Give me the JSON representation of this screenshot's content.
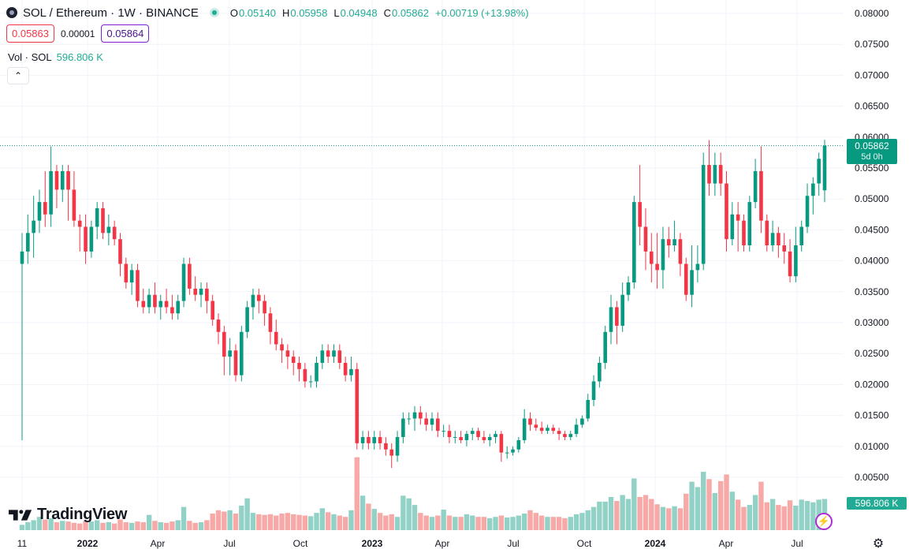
{
  "header": {
    "symbol_title": "SOL / Ethereum · 1W · BINANCE",
    "ohlc": {
      "o_label": "O",
      "o": "0.05140",
      "h_label": "H",
      "h": "0.05958",
      "l_label": "L",
      "l": "0.04948",
      "c_label": "C",
      "c": "0.05862",
      "change": "+0.00719 (+13.98%)"
    },
    "sell_price": "0.05863",
    "spread": "0.00001",
    "buy_price": "0.05864",
    "volume_label": "Vol · SOL",
    "volume_value": "596.806 K"
  },
  "price_tag": {
    "price": "0.05862",
    "countdown": "5d 0h"
  },
  "volume_tag": "596.806 K",
  "logo": {
    "text": "TradingView"
  },
  "icons": {
    "symbol": "solana-logo-icon",
    "status": "market-open-dot-icon",
    "collapse": "chevron-up-icon",
    "alert": "lightning-icon",
    "settings": "gear-icon"
  },
  "colors": {
    "up": "#089981",
    "down": "#f23645",
    "up_volume": "#92d2c6",
    "down_volume": "#f7a9a7",
    "grid": "#f0f3fa",
    "last_price_line": "#089981"
  },
  "chart_data": {
    "type": "candlestick",
    "title": "SOL / Ethereum · 1W · BINANCE",
    "ylim": [
      0,
      0.08
    ],
    "y_ticks": [
      "0.08000",
      "0.07500",
      "0.07000",
      "0.06500",
      "0.06000",
      "0.05500",
      "0.05000",
      "0.04500",
      "0.04000",
      "0.03500",
      "0.03000",
      "0.02500",
      "0.02000",
      "0.01500",
      "0.01000",
      "0.00500"
    ],
    "x_ticks": [
      "11",
      "2022",
      "Apr",
      "Jul",
      "Oct",
      "2023",
      "Apr",
      "Jul",
      "Oct",
      "2024",
      "Apr",
      "Jul"
    ],
    "last_price": 0.05862,
    "grid": true,
    "candles": [
      [
        0.0395,
        0.0445,
        0.011,
        0.0415
      ],
      [
        0.0415,
        0.0475,
        0.0395,
        0.0445
      ],
      [
        0.0445,
        0.0505,
        0.0405,
        0.0465
      ],
      [
        0.0465,
        0.0515,
        0.0445,
        0.0495
      ],
      [
        0.0495,
        0.0545,
        0.0455,
        0.0475
      ],
      [
        0.0475,
        0.0585,
        0.0455,
        0.0545
      ],
      [
        0.0545,
        0.0555,
        0.0485,
        0.0515
      ],
      [
        0.0515,
        0.0555,
        0.0495,
        0.0545
      ],
      [
        0.0545,
        0.0555,
        0.0465,
        0.0515
      ],
      [
        0.0515,
        0.0545,
        0.0455,
        0.0465
      ],
      [
        0.0465,
        0.0475,
        0.0415,
        0.0455
      ],
      [
        0.0455,
        0.0475,
        0.0395,
        0.0415
      ],
      [
        0.0415,
        0.0465,
        0.0405,
        0.0455
      ],
      [
        0.0455,
        0.0495,
        0.0435,
        0.0485
      ],
      [
        0.0485,
        0.0495,
        0.0435,
        0.0445
      ],
      [
        0.0445,
        0.0475,
        0.0425,
        0.0455
      ],
      [
        0.0455,
        0.0465,
        0.0425,
        0.0435
      ],
      [
        0.0435,
        0.0445,
        0.0375,
        0.0395
      ],
      [
        0.0395,
        0.0405,
        0.0355,
        0.0365
      ],
      [
        0.0365,
        0.0395,
        0.0345,
        0.0385
      ],
      [
        0.0385,
        0.0395,
        0.0325,
        0.0335
      ],
      [
        0.0335,
        0.0355,
        0.0315,
        0.0325
      ],
      [
        0.0325,
        0.0355,
        0.0315,
        0.0345
      ],
      [
        0.0345,
        0.0365,
        0.0315,
        0.0325
      ],
      [
        0.0325,
        0.0345,
        0.0305,
        0.0335
      ],
      [
        0.0335,
        0.0355,
        0.0315,
        0.0325
      ],
      [
        0.0325,
        0.0345,
        0.0305,
        0.0315
      ],
      [
        0.0315,
        0.0345,
        0.0305,
        0.0335
      ],
      [
        0.0335,
        0.0405,
        0.0325,
        0.0395
      ],
      [
        0.0395,
        0.0405,
        0.0345,
        0.0355
      ],
      [
        0.0355,
        0.0375,
        0.0335,
        0.0345
      ],
      [
        0.0345,
        0.0365,
        0.0325,
        0.0355
      ],
      [
        0.0355,
        0.0365,
        0.0315,
        0.0335
      ],
      [
        0.0335,
        0.0345,
        0.0295,
        0.0305
      ],
      [
        0.0305,
        0.0315,
        0.0265,
        0.0285
      ],
      [
        0.0285,
        0.0295,
        0.0215,
        0.0245
      ],
      [
        0.0245,
        0.0275,
        0.0215,
        0.0255
      ],
      [
        0.0255,
        0.0265,
        0.0205,
        0.0215
      ],
      [
        0.0215,
        0.0295,
        0.0205,
        0.0285
      ],
      [
        0.0285,
        0.0335,
        0.0275,
        0.0325
      ],
      [
        0.0325,
        0.0355,
        0.0305,
        0.0345
      ],
      [
        0.0345,
        0.0355,
        0.0315,
        0.0335
      ],
      [
        0.0335,
        0.0345,
        0.0295,
        0.0315
      ],
      [
        0.0315,
        0.0325,
        0.0265,
        0.0285
      ],
      [
        0.0285,
        0.0305,
        0.0255,
        0.0265
      ],
      [
        0.0265,
        0.0275,
        0.0235,
        0.0255
      ],
      [
        0.0255,
        0.0265,
        0.0225,
        0.0245
      ],
      [
        0.0245,
        0.0255,
        0.0215,
        0.0235
      ],
      [
        0.0235,
        0.0245,
        0.0205,
        0.0225
      ],
      [
        0.0225,
        0.0235,
        0.0195,
        0.0205
      ],
      [
        0.0205,
        0.0215,
        0.0195,
        0.0205
      ],
      [
        0.0205,
        0.0245,
        0.0195,
        0.0235
      ],
      [
        0.0235,
        0.0265,
        0.0225,
        0.0255
      ],
      [
        0.0255,
        0.0265,
        0.0235,
        0.0245
      ],
      [
        0.0245,
        0.0265,
        0.0235,
        0.0255
      ],
      [
        0.0255,
        0.0265,
        0.0225,
        0.0235
      ],
      [
        0.0235,
        0.0245,
        0.0205,
        0.0215
      ],
      [
        0.0215,
        0.0245,
        0.0205,
        0.0225
      ],
      [
        0.0225,
        0.0235,
        0.0095,
        0.0105
      ],
      [
        0.0105,
        0.0125,
        0.0095,
        0.0115
      ],
      [
        0.0115,
        0.0125,
        0.0095,
        0.0105
      ],
      [
        0.0105,
        0.0125,
        0.0095,
        0.0115
      ],
      [
        0.0115,
        0.0125,
        0.0095,
        0.0105
      ],
      [
        0.0105,
        0.0115,
        0.0085,
        0.0095
      ],
      [
        0.0095,
        0.0105,
        0.0065,
        0.0085
      ],
      [
        0.0085,
        0.0125,
        0.0075,
        0.0115
      ],
      [
        0.0115,
        0.0155,
        0.0105,
        0.0145
      ],
      [
        0.0145,
        0.0155,
        0.0135,
        0.0145
      ],
      [
        0.0145,
        0.0165,
        0.0125,
        0.0155
      ],
      [
        0.0155,
        0.0165,
        0.0135,
        0.0145
      ],
      [
        0.0145,
        0.0155,
        0.0125,
        0.0135
      ],
      [
        0.0135,
        0.0155,
        0.0125,
        0.0145
      ],
      [
        0.0145,
        0.0155,
        0.0115,
        0.0125
      ],
      [
        0.0125,
        0.0135,
        0.0115,
        0.0125
      ],
      [
        0.0125,
        0.0135,
        0.0105,
        0.0115
      ],
      [
        0.0115,
        0.0125,
        0.0105,
        0.0115
      ],
      [
        0.0115,
        0.0125,
        0.0105,
        0.011
      ],
      [
        0.011,
        0.0125,
        0.01,
        0.012
      ],
      [
        0.012,
        0.013,
        0.011,
        0.0125
      ],
      [
        0.0125,
        0.013,
        0.011,
        0.0115
      ],
      [
        0.0115,
        0.0125,
        0.0105,
        0.011
      ],
      [
        0.011,
        0.012,
        0.01,
        0.0115
      ],
      [
        0.0115,
        0.0125,
        0.0105,
        0.012
      ],
      [
        0.012,
        0.0125,
        0.0075,
        0.009
      ],
      [
        0.009,
        0.01,
        0.008,
        0.009
      ],
      [
        0.009,
        0.01,
        0.0085,
        0.0095
      ],
      [
        0.0095,
        0.0115,
        0.009,
        0.011
      ],
      [
        0.011,
        0.016,
        0.0105,
        0.0145
      ],
      [
        0.0145,
        0.0155,
        0.0125,
        0.0135
      ],
      [
        0.0135,
        0.0145,
        0.0125,
        0.013
      ],
      [
        0.013,
        0.014,
        0.012,
        0.0125
      ],
      [
        0.0125,
        0.0135,
        0.012,
        0.013
      ],
      [
        0.013,
        0.0135,
        0.012,
        0.0125
      ],
      [
        0.0125,
        0.013,
        0.011,
        0.012
      ],
      [
        0.012,
        0.0125,
        0.011,
        0.0115
      ],
      [
        0.0115,
        0.0125,
        0.011,
        0.012
      ],
      [
        0.012,
        0.0145,
        0.0115,
        0.0135
      ],
      [
        0.0135,
        0.015,
        0.013,
        0.0145
      ],
      [
        0.0145,
        0.0185,
        0.014,
        0.0175
      ],
      [
        0.0175,
        0.0215,
        0.0165,
        0.0205
      ],
      [
        0.0205,
        0.0245,
        0.0195,
        0.0235
      ],
      [
        0.0235,
        0.0295,
        0.0225,
        0.0285
      ],
      [
        0.0285,
        0.0345,
        0.0265,
        0.0325
      ],
      [
        0.0325,
        0.0335,
        0.0265,
        0.0295
      ],
      [
        0.0295,
        0.0365,
        0.0285,
        0.0345
      ],
      [
        0.0345,
        0.0375,
        0.0335,
        0.0365
      ],
      [
        0.0365,
        0.0505,
        0.0355,
        0.0495
      ],
      [
        0.0495,
        0.0555,
        0.0425,
        0.0455
      ],
      [
        0.0455,
        0.0485,
        0.0385,
        0.0415
      ],
      [
        0.0415,
        0.0445,
        0.0365,
        0.0395
      ],
      [
        0.0395,
        0.0445,
        0.0355,
        0.0385
      ],
      [
        0.0385,
        0.0455,
        0.0355,
        0.0435
      ],
      [
        0.0435,
        0.0455,
        0.0405,
        0.0425
      ],
      [
        0.0425,
        0.0465,
        0.0415,
        0.0435
      ],
      [
        0.0435,
        0.0445,
        0.0375,
        0.0395
      ],
      [
        0.0395,
        0.0405,
        0.0335,
        0.0345
      ],
      [
        0.0345,
        0.0425,
        0.0325,
        0.0385
      ],
      [
        0.0385,
        0.0425,
        0.0365,
        0.0395
      ],
      [
        0.0395,
        0.0575,
        0.0385,
        0.0555
      ],
      [
        0.0555,
        0.0595,
        0.0505,
        0.0525
      ],
      [
        0.0525,
        0.0575,
        0.0505,
        0.0555
      ],
      [
        0.0555,
        0.0575,
        0.0505,
        0.0525
      ],
      [
        0.0525,
        0.0545,
        0.0415,
        0.0435
      ],
      [
        0.0435,
        0.0495,
        0.0425,
        0.0475
      ],
      [
        0.0475,
        0.0495,
        0.0415,
        0.0465
      ],
      [
        0.0465,
        0.0475,
        0.0415,
        0.0425
      ],
      [
        0.0425,
        0.0505,
        0.0415,
        0.0495
      ],
      [
        0.0495,
        0.0565,
        0.0485,
        0.0545
      ],
      [
        0.0545,
        0.0585,
        0.0445,
        0.0465
      ],
      [
        0.0465,
        0.0475,
        0.0415,
        0.0425
      ],
      [
        0.0425,
        0.0465,
        0.0415,
        0.0445
      ],
      [
        0.0445,
        0.0455,
        0.0405,
        0.0425
      ],
      [
        0.0425,
        0.0445,
        0.0395,
        0.0415
      ],
      [
        0.0415,
        0.0435,
        0.0365,
        0.0375
      ],
      [
        0.0375,
        0.0455,
        0.0365,
        0.0425
      ],
      [
        0.0425,
        0.0465,
        0.0415,
        0.0455
      ],
      [
        0.0455,
        0.0525,
        0.0445,
        0.0505
      ],
      [
        0.0505,
        0.0535,
        0.0475,
        0.0525
      ],
      [
        0.0525,
        0.0575,
        0.0505,
        0.0565
      ],
      [
        0.0514,
        0.05958,
        0.04948,
        0.05862
      ]
    ],
    "volumes": [
      0.8,
      1.2,
      1.5,
      2.0,
      1.6,
      1.8,
      1.2,
      1.4,
      1.3,
      1.1,
      1.0,
      1.4,
      1.3,
      1.5,
      1.1,
      1.2,
      1.0,
      1.6,
      1.2,
      1.1,
      1.3,
      1.2,
      2.3,
      1.4,
      1.2,
      1.1,
      1.3,
      1.5,
      3.5,
      1.4,
      1.1,
      1.2,
      1.5,
      2.5,
      3.0,
      2.8,
      3.0,
      2.5,
      3.7,
      4.8,
      2.6,
      2.4,
      2.3,
      2.4,
      2.2,
      2.5,
      2.6,
      2.4,
      2.3,
      2.2,
      2.1,
      2.6,
      3.3,
      2.7,
      2.4,
      2.2,
      2.0,
      3.0,
      11.0,
      5.2,
      4.0,
      3.2,
      2.6,
      2.2,
      2.4,
      2.0,
      5.2,
      4.8,
      3.8,
      2.6,
      2.2,
      2.0,
      2.2,
      3.1,
      2.2,
      2.0,
      2.0,
      2.4,
      2.2,
      2.0,
      2.0,
      1.8,
      2.0,
      2.2,
      1.9,
      2.0,
      2.2,
      2.5,
      3.0,
      2.6,
      2.2,
      2.0,
      2.0,
      2.0,
      1.8,
      2.0,
      2.4,
      2.6,
      3.0,
      3.5,
      4.3,
      4.3,
      5.0,
      4.4,
      5.3,
      4.7,
      7.8,
      5.0,
      5.3,
      4.7,
      3.9,
      3.5,
      3.3,
      3.6,
      3.3,
      5.5,
      7.3,
      6.5,
      8.8,
      7.7,
      5.6,
      7.4,
      8.4,
      5.8,
      4.6,
      3.5,
      3.8,
      5.3,
      7.3,
      4.2,
      4.7,
      3.8,
      3.6,
      4.5,
      3.7,
      4.6,
      4.4,
      4.2,
      4.6,
      4.7
    ]
  }
}
